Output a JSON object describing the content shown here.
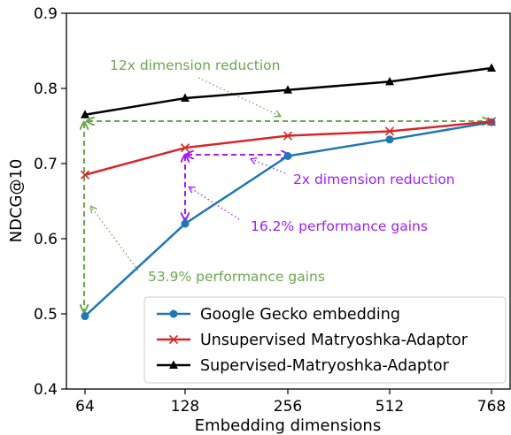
{
  "chart_data": {
    "type": "line",
    "xlabel": "Embedding dimensions",
    "ylabel": "NDCG@10",
    "categories": [
      "64",
      "128",
      "256",
      "512",
      "768"
    ],
    "ylim": [
      0.4,
      0.9
    ],
    "yticks": [
      "0.4",
      "0.5",
      "0.6",
      "0.7",
      "0.8",
      "0.9"
    ],
    "grid": false,
    "legend_position": "bottom-right",
    "series": [
      {
        "name": "Google Gecko embedding",
        "values": [
          0.497,
          0.62,
          0.71,
          0.732,
          0.755
        ],
        "color": "#1f77b4",
        "marker": "circle"
      },
      {
        "name": "Unsupervised Matryoshka-Adaptor",
        "values": [
          0.685,
          0.721,
          0.737,
          0.743,
          0.756
        ],
        "color": "#d62728",
        "marker": "x"
      },
      {
        "name": "Supervised-Matryoshka-Adaptor",
        "values": [
          0.765,
          0.787,
          0.798,
          0.809,
          0.827
        ],
        "color": "#000000",
        "marker": "triangle"
      }
    ],
    "annotations": [
      {
        "text": "12x dimension reduction",
        "color": "#6aa84f"
      },
      {
        "text": "2x dimension reduction",
        "color": "#a020f0"
      },
      {
        "text": "16.2% performance gains",
        "color": "#a020f0"
      },
      {
        "text": "53.9% performance gains",
        "color": "#6aa84f"
      }
    ]
  }
}
